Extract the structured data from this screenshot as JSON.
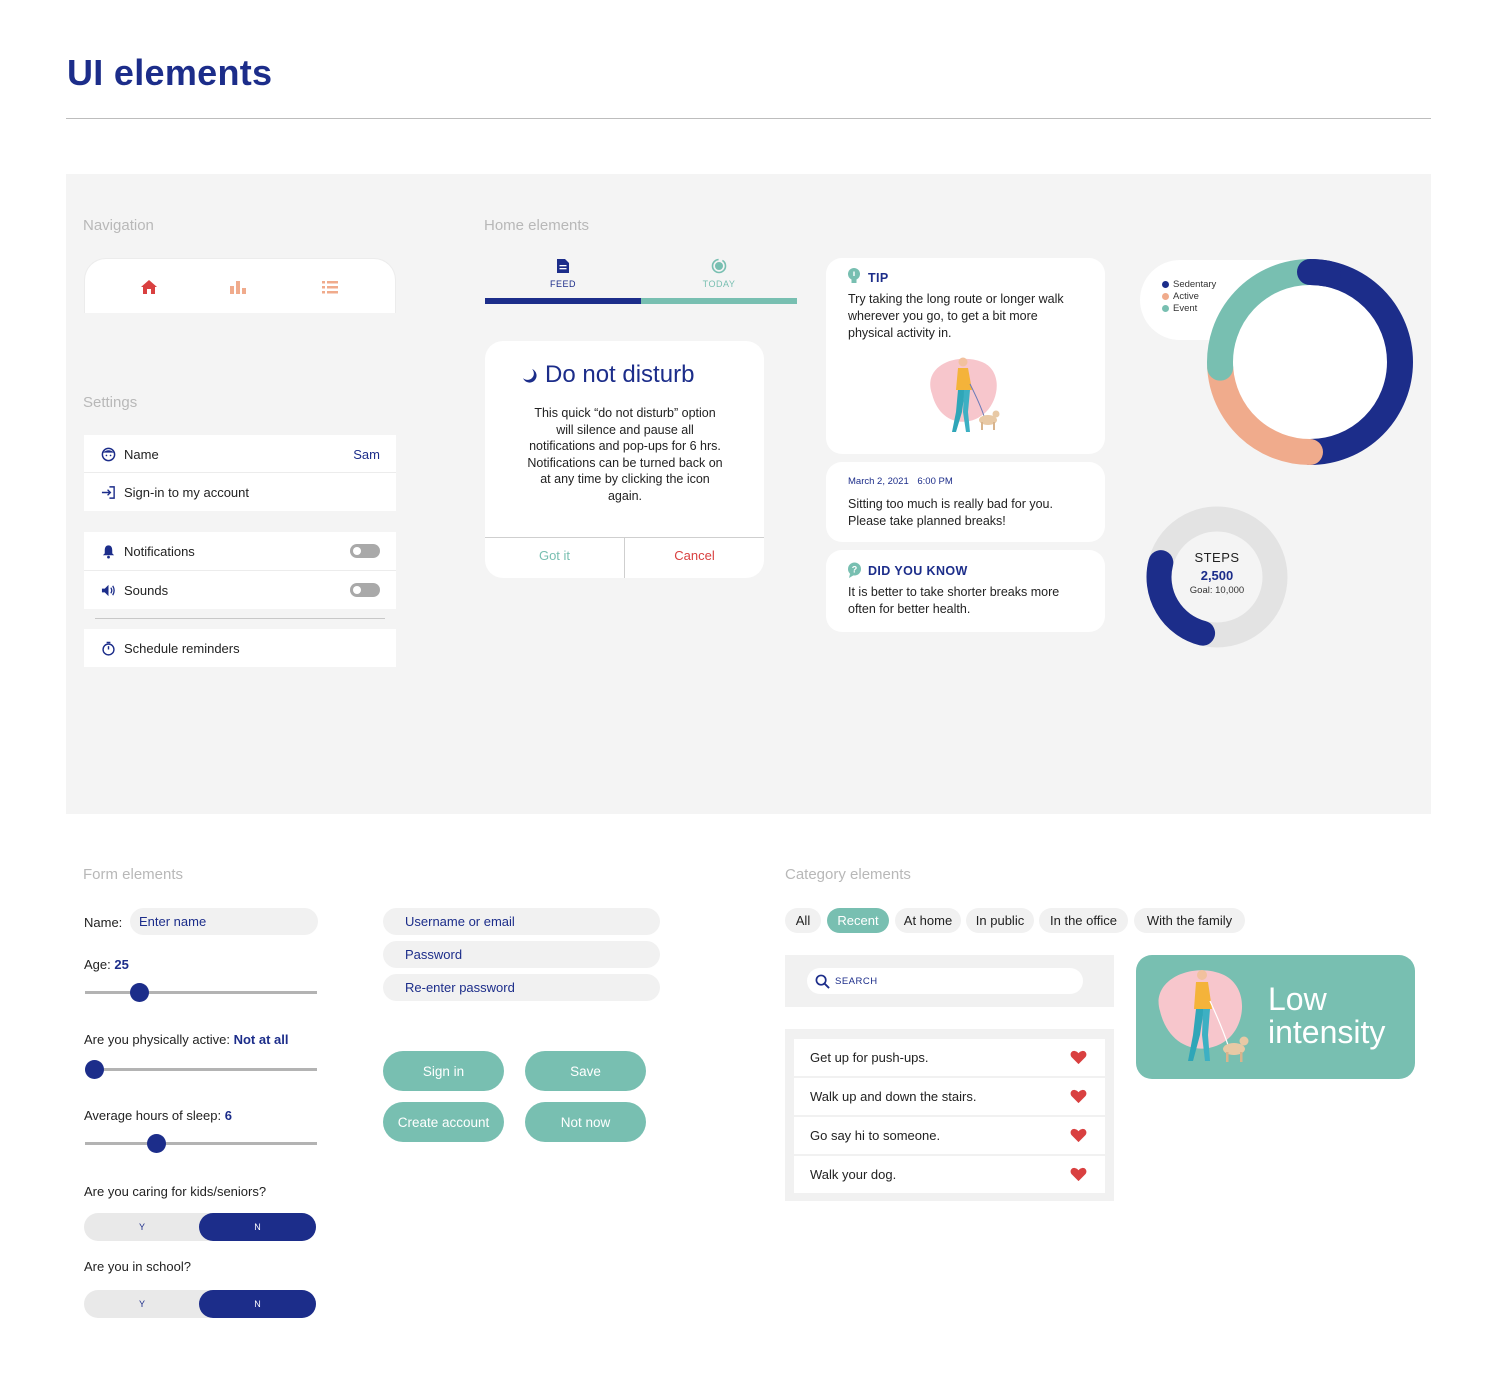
{
  "page": {
    "title": "UI elements"
  },
  "sections": {
    "navigation": "Navigation",
    "home": "Home elements",
    "settings": "Settings",
    "form": "Form elements",
    "category": "Category elements"
  },
  "colors": {
    "navy": "#1c2d8a",
    "teal": "#78bfb1",
    "peach": "#f0ab8c",
    "red": "#d94040",
    "gray": "#e3e3e3"
  },
  "navigation": {
    "icons": [
      "home-icon",
      "bar-chart-icon",
      "list-icon"
    ]
  },
  "settings": {
    "name_label": "Name",
    "name_value": "Sam",
    "signin_label": "Sign-in to my account",
    "notifications_label": "Notifications",
    "sounds_label": "Sounds",
    "reminders_label": "Schedule reminders"
  },
  "tabs": {
    "feed": "FEED",
    "today": "TODAY",
    "progress": 0.5
  },
  "dialog": {
    "title": "Do not disturb",
    "body": "This quick “do not disturb” option will silence and pause all notifications and pop-ups for 6 hrs. Notifications can be turned back on at any time by clicking the icon again.",
    "ok": "Got it",
    "cancel": "Cancel"
  },
  "cards": {
    "tip_title": "TIP",
    "tip_text": "Try taking the long route or longer walk wherever you go, to get a bit more physical activity in.",
    "message_date": "March 2, 2021",
    "message_time": "6:00 PM",
    "message_text": "Sitting too much is really bad for you. Please take planned breaks!",
    "dyk_title": "DID YOU KNOW",
    "dyk_text": "It is better to take shorter breaks more often for better health."
  },
  "activity_chart": {
    "legend": [
      "Sedentary",
      "Active",
      "Event"
    ],
    "colors": [
      "#1c2d8a",
      "#f0ab8c",
      "#78bfb1"
    ],
    "shares": [
      0.5,
      0.24,
      0.26
    ]
  },
  "steps": {
    "label": "STEPS",
    "value": "2,500",
    "goal": "Goal: 10,000",
    "progress": 0.25
  },
  "form": {
    "name_label": "Name:",
    "name_placeholder": "Enter name",
    "age_label": "Age:",
    "age_value": "25",
    "active_label": "Are you physically active:",
    "active_value": "Not at all",
    "sleep_label": "Average hours of sleep:",
    "sleep_value": "6",
    "caring_label": "Are you caring for kids/seniors?",
    "school_label": "Are you in school?",
    "yes": "Y",
    "no": "N",
    "username_placeholder": "Username or email",
    "password_placeholder": "Password",
    "reenter_placeholder": "Re-enter password",
    "signin": "Sign in",
    "save": "Save",
    "create": "Create account",
    "notnow": "Not now"
  },
  "sliders": {
    "age": 0.21,
    "active": 0.0,
    "sleep": 0.29
  },
  "categories": {
    "chips": [
      "All",
      "Recent",
      "At home",
      "In public",
      "In the office",
      "With the family"
    ],
    "search_placeholder": "SEARCH",
    "items": [
      "Get up for push-ups.",
      "Walk up and down the stairs.",
      "Go say hi to someone.",
      "Walk your dog."
    ],
    "intensity": "Low intensity"
  }
}
